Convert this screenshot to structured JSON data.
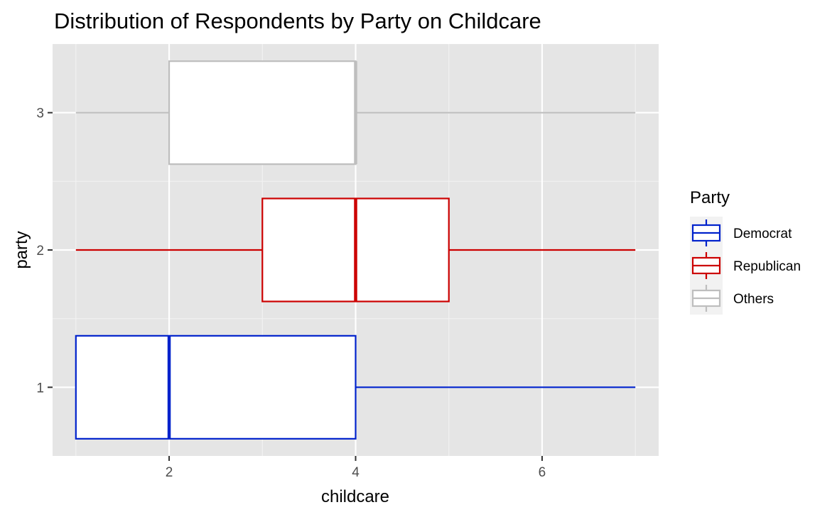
{
  "chart_data": {
    "type": "boxplot",
    "orientation": "horizontal",
    "title": "Distribution of Respondents by Party on Childcare",
    "xlabel": "childcare",
    "ylabel": "party",
    "xlim": [
      0.75,
      7.25
    ],
    "ylim": [
      0.5,
      3.5
    ],
    "x_ticks": [
      2,
      4,
      6
    ],
    "x_minor_ticks": [
      1,
      3,
      5,
      7
    ],
    "y_ticks": [
      1,
      2,
      3
    ],
    "grid": true,
    "legend": {
      "title": "Party",
      "position": "right",
      "entries": [
        "Democrat",
        "Republican",
        "Others"
      ]
    },
    "series": [
      {
        "name": "Democrat",
        "y": 1,
        "min": 1,
        "q1": 1,
        "median": 2,
        "q3": 4,
        "max": 7,
        "color": "#0022cc"
      },
      {
        "name": "Republican",
        "y": 2,
        "min": 1,
        "q1": 3,
        "median": 4,
        "q3": 5,
        "max": 7,
        "color": "#cc0000"
      },
      {
        "name": "Others",
        "y": 3,
        "min": 1,
        "q1": 2,
        "median": 4,
        "q3": 4,
        "max": 7,
        "color": "#bebebe"
      }
    ]
  }
}
